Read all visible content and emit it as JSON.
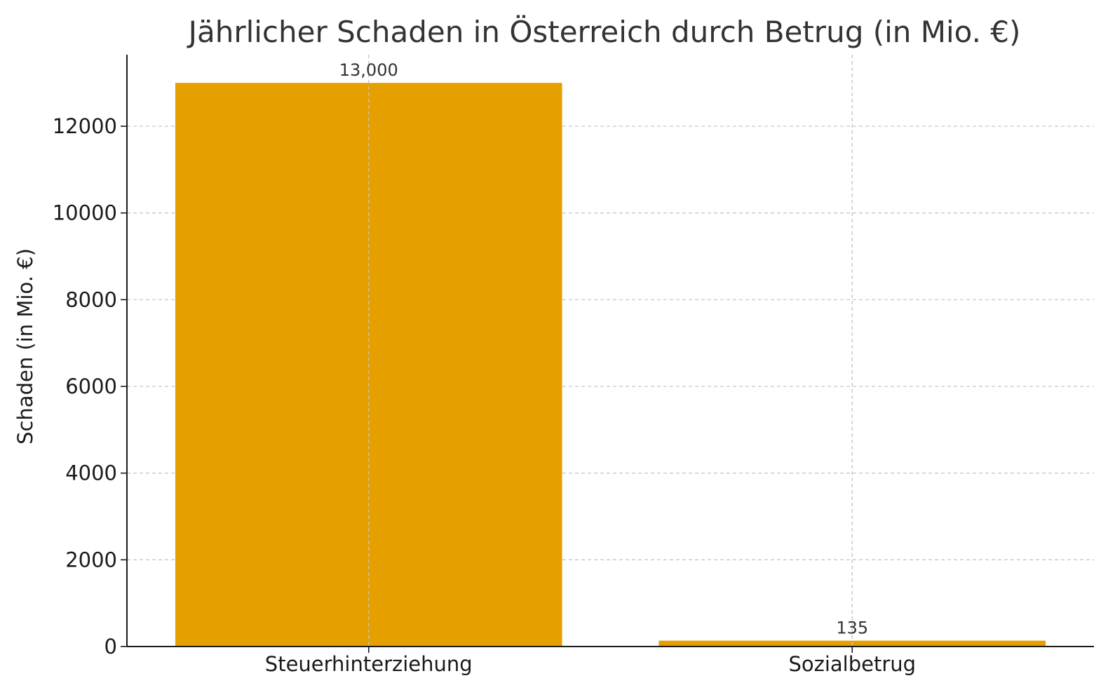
{
  "chart_data": {
    "type": "bar",
    "title": "Jährlicher Schaden in Österreich durch Betrug (in Mio. €)",
    "xlabel": "",
    "ylabel": "Schaden (in Mio. €)",
    "categories": [
      "Steuerhinterziehung",
      "Sozialbetrug"
    ],
    "values": [
      13000,
      135
    ],
    "value_labels": [
      "13,000",
      "135"
    ],
    "ylim": [
      0,
      13650
    ],
    "yticks": [
      0,
      2000,
      4000,
      6000,
      8000,
      10000,
      12000
    ],
    "ytick_labels": [
      "0",
      "2000",
      "4000",
      "6000",
      "8000",
      "10000",
      "12000"
    ],
    "grid": true,
    "bar_color": "#E5A000",
    "axis_color": "#1a1a1a",
    "grid_color": "#c8c8c8",
    "text_color": "#333333"
  }
}
